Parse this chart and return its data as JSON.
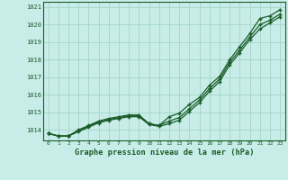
{
  "title": "Graphe pression niveau de la mer (hPa)",
  "background_color": "#c8ede8",
  "grid_color": "#a8d8cc",
  "line_color": "#1a5c28",
  "xlim": [
    -0.5,
    23.5
  ],
  "ylim": [
    1013.4,
    1021.3
  ],
  "yticks": [
    1014,
    1015,
    1016,
    1017,
    1018,
    1019,
    1020,
    1021
  ],
  "xticks": [
    0,
    1,
    2,
    3,
    4,
    5,
    6,
    7,
    8,
    9,
    10,
    11,
    12,
    13,
    14,
    15,
    16,
    17,
    18,
    19,
    20,
    21,
    22,
    23
  ],
  "series": [
    [
      1013.8,
      1013.65,
      1013.65,
      1014.0,
      1014.25,
      1014.5,
      1014.65,
      1014.75,
      1014.85,
      1014.85,
      1014.35,
      1014.25,
      1014.75,
      1014.95,
      1015.45,
      1015.85,
      1016.55,
      1017.05,
      1018.0,
      1018.75,
      1019.5,
      1020.35,
      1020.5,
      1020.85
    ],
    [
      1013.8,
      1013.65,
      1013.65,
      1013.95,
      1014.2,
      1014.45,
      1014.6,
      1014.7,
      1014.8,
      1014.8,
      1014.35,
      1014.25,
      1014.5,
      1014.7,
      1015.2,
      1015.7,
      1016.35,
      1016.9,
      1017.85,
      1018.55,
      1019.3,
      1020.0,
      1020.25,
      1020.6
    ],
    [
      1013.8,
      1013.65,
      1013.65,
      1013.9,
      1014.15,
      1014.4,
      1014.55,
      1014.65,
      1014.75,
      1014.75,
      1014.3,
      1014.2,
      1014.35,
      1014.55,
      1015.05,
      1015.55,
      1016.2,
      1016.75,
      1017.7,
      1018.4,
      1019.15,
      1019.75,
      1020.1,
      1020.45
    ]
  ]
}
